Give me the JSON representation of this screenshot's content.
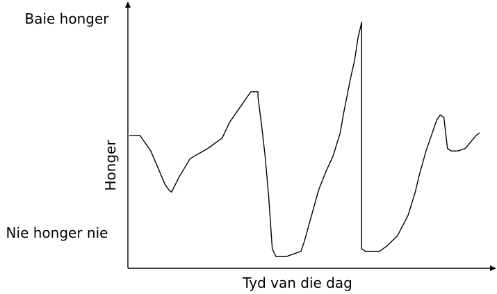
{
  "chart_data": {
    "type": "line",
    "title": "",
    "xlabel": "Tyd van die dag",
    "ylabel": "Honger",
    "y_top_label": "Baie honger",
    "y_bottom_label": "Nie honger nie",
    "grid": false,
    "legend": "none",
    "line_color": "#000000",
    "series": [
      {
        "values": [
          [
            0,
            56
          ],
          [
            3,
            56
          ],
          [
            6,
            50
          ],
          [
            10,
            37
          ],
          [
            11,
            35
          ],
          [
            11.8,
            34
          ],
          [
            14,
            40
          ],
          [
            17,
            47
          ],
          [
            22,
            51
          ],
          [
            26,
            55
          ],
          [
            28,
            61
          ],
          [
            31,
            67
          ],
          [
            33,
            71
          ],
          [
            34,
            73
          ],
          [
            36,
            73
          ],
          [
            36,
            71
          ],
          [
            37,
            60
          ],
          [
            38,
            48
          ],
          [
            39,
            32
          ],
          [
            40,
            12
          ],
          [
            41,
            9
          ],
          [
            42,
            9
          ],
          [
            44,
            9
          ],
          [
            46,
            10
          ],
          [
            48,
            11
          ],
          [
            49,
            15
          ],
          [
            51,
            25
          ],
          [
            53,
            35
          ],
          [
            55,
            42
          ],
          [
            57,
            48
          ],
          [
            59,
            57
          ],
          [
            60,
            65
          ],
          [
            61,
            72
          ],
          [
            62,
            79
          ],
          [
            63,
            85
          ],
          [
            64,
            94
          ],
          [
            65,
            100
          ],
          [
            65,
            94
          ],
          [
            65,
            70
          ],
          [
            65,
            40
          ],
          [
            65,
            12
          ],
          [
            66,
            11
          ],
          [
            68,
            11
          ],
          [
            70,
            11
          ],
          [
            72,
            13
          ],
          [
            75,
            17
          ],
          [
            78,
            25
          ],
          [
            80,
            34
          ],
          [
            81,
            40
          ],
          [
            83,
            50
          ],
          [
            86,
            62
          ],
          [
            87,
            64
          ],
          [
            88,
            63
          ],
          [
            89,
            51
          ],
          [
            90,
            50
          ],
          [
            92,
            50
          ],
          [
            94,
            51
          ],
          [
            97,
            56
          ],
          [
            98,
            57
          ]
        ]
      }
    ]
  }
}
